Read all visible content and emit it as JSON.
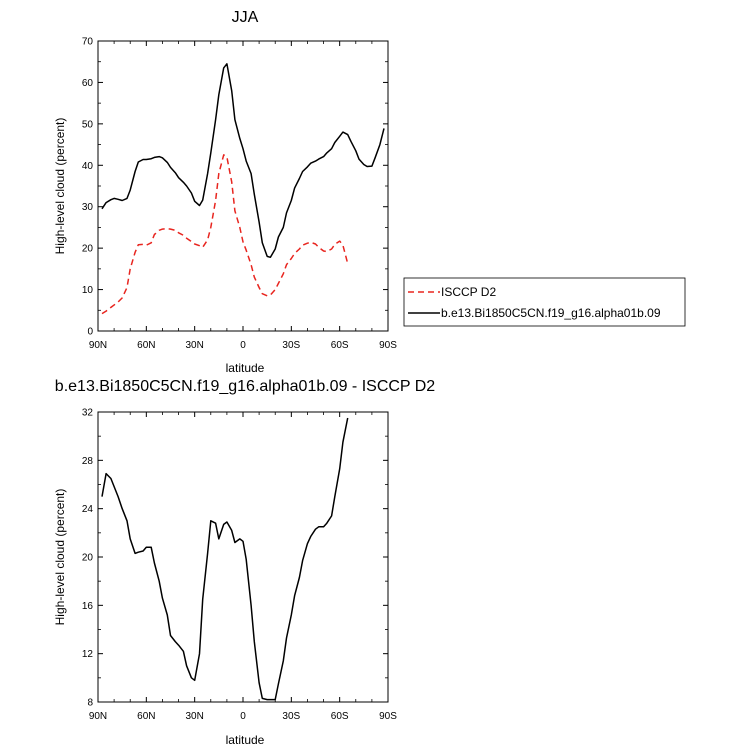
{
  "chart_data": [
    {
      "type": "line",
      "title": "JJA",
      "xlabel": "latitude",
      "ylabel": "High-level cloud (percent)",
      "xlim": [
        90,
        -90
      ],
      "ylim": [
        0,
        70
      ],
      "xticks": [
        {
          "value": 90,
          "label": "90N"
        },
        {
          "value": 60,
          "label": "60N"
        },
        {
          "value": 30,
          "label": "30N"
        },
        {
          "value": 0,
          "label": "0"
        },
        {
          "value": -30,
          "label": "30S"
        },
        {
          "value": -60,
          "label": "60S"
        },
        {
          "value": -90,
          "label": "90S"
        }
      ],
      "yticks": [
        0,
        10,
        20,
        30,
        40,
        50,
        60,
        70
      ],
      "legend": {
        "placement": "right",
        "entries": [
          "ISCCP D2",
          "b.e13.Bi1850C5CN.f19_g16.alpha01b.09"
        ]
      },
      "series": [
        {
          "name": "ISCCP D2",
          "color": "#e8251f",
          "dash": "dashed",
          "x": [
            87.5,
            85,
            82,
            77.5,
            75,
            72,
            70,
            67,
            65,
            62,
            60,
            57,
            55,
            52,
            50,
            47,
            45,
            42,
            40,
            37,
            35,
            32,
            30,
            27,
            25,
            22,
            20,
            17,
            15,
            12,
            10,
            7,
            5,
            2,
            0,
            -2,
            -5,
            -7,
            -10,
            -12,
            -15,
            -17,
            -20,
            -22,
            -25,
            -27,
            -30,
            -32,
            -35,
            -37,
            -40,
            -42,
            -45,
            -47,
            -50,
            -52,
            -55,
            -57,
            -60,
            -62,
            -65
          ],
          "y": [
            4.2,
            4.8,
            5.7,
            7,
            8,
            10.5,
            15,
            19,
            20.8,
            20.9,
            20.7,
            21.3,
            23.3,
            24.3,
            24.6,
            24.7,
            24.6,
            24.3,
            23.7,
            23.1,
            22.4,
            21.6,
            21,
            20.6,
            20.2,
            22,
            25,
            31.5,
            38,
            42.5,
            42,
            36,
            29,
            25,
            21.5,
            19.5,
            16,
            13,
            10.5,
            9,
            8.5,
            8.7,
            10,
            11.5,
            13.8,
            16,
            17.5,
            18.7,
            19.8,
            20.7,
            21.2,
            21.4,
            21,
            20.2,
            19.3,
            19.2,
            19.8,
            20.9,
            21.7,
            20.7,
            16.3
          ]
        },
        {
          "name": "b.e13.Bi1850C5CN.f19_g16.alpha01b.09",
          "color": "#000000",
          "dash": "solid",
          "x": [
            87.5,
            85,
            82,
            80,
            77.5,
            75,
            72,
            70,
            67,
            65,
            62,
            60,
            57,
            55,
            52,
            50,
            47,
            45,
            42,
            40,
            37,
            35,
            32,
            30,
            27,
            25,
            22,
            20,
            17,
            15,
            12,
            10,
            7,
            5,
            2,
            0,
            -2,
            -5,
            -7,
            -10,
            -12,
            -15,
            -17,
            -20,
            -22,
            -25,
            -27,
            -30,
            -32,
            -35,
            -37,
            -40,
            -42,
            -45,
            -47,
            -50,
            -52,
            -55,
            -57,
            -60,
            -62,
            -65,
            -67,
            -70,
            -72,
            -75,
            -77,
            -80,
            -82,
            -85,
            -87.5
          ],
          "y": [
            29.5,
            31,
            31.7,
            32,
            31.8,
            31.5,
            32,
            34,
            38.5,
            40.8,
            41.4,
            41.4,
            41.6,
            41.9,
            42.1,
            41.8,
            40.7,
            39.5,
            38.2,
            37,
            35.9,
            35,
            33.3,
            31.3,
            30.3,
            31.6,
            38,
            43,
            51,
            57,
            63.5,
            64.5,
            58,
            51,
            46.5,
            44,
            41,
            38,
            33,
            26.3,
            21.3,
            18,
            17.8,
            19.8,
            22.7,
            25,
            28.5,
            31.5,
            34.5,
            36.8,
            38.5,
            39.6,
            40.5,
            41,
            41.5,
            42.1,
            43,
            44,
            45.5,
            47,
            48,
            47.4,
            45.8,
            43.5,
            41.5,
            40.2,
            39.7,
            39.8,
            41.8,
            45,
            48.9
          ]
        }
      ]
    },
    {
      "type": "line",
      "title": "b.e13.Bi1850C5CN.f19_g16.alpha01b.09 - ISCCP D2",
      "xlabel": "latitude",
      "ylabel": "High-level cloud (percent)",
      "xlim": [
        90,
        -90
      ],
      "ylim": [
        8,
        32
      ],
      "xticks": [
        {
          "value": 90,
          "label": "90N"
        },
        {
          "value": 60,
          "label": "60N"
        },
        {
          "value": 30,
          "label": "30N"
        },
        {
          "value": 0,
          "label": "0"
        },
        {
          "value": -30,
          "label": "30S"
        },
        {
          "value": -60,
          "label": "60S"
        },
        {
          "value": -90,
          "label": "90S"
        }
      ],
      "yticks": [
        8,
        12,
        16,
        20,
        24,
        28,
        32
      ],
      "series": [
        {
          "color": "#000000",
          "dash": "solid",
          "x": [
            87.5,
            85,
            82,
            77.5,
            75,
            72,
            70,
            67,
            65,
            62,
            60,
            57,
            55,
            52,
            50,
            47,
            45,
            42,
            40,
            37,
            35,
            32,
            30,
            27,
            25,
            22,
            20,
            17,
            15,
            12,
            10,
            7,
            5,
            2,
            0,
            -2,
            -5,
            -7,
            -10,
            -12,
            -15,
            -17,
            -20,
            -22,
            -25,
            -27,
            -30,
            -32,
            -35,
            -37,
            -40,
            -42,
            -45,
            -47,
            -50,
            -52,
            -55,
            -57,
            -60,
            -62,
            -65
          ],
          "y": [
            25,
            26.9,
            26.5,
            25,
            24,
            23,
            21.5,
            20.3,
            20.4,
            20.5,
            20.8,
            20.8,
            19.5,
            18,
            16.6,
            15.2,
            13.5,
            13,
            12.7,
            12.2,
            11,
            10,
            9.8,
            12,
            16.5,
            20.3,
            23,
            22.8,
            21.5,
            22.7,
            22.9,
            22.2,
            21.2,
            21.5,
            21.3,
            19.8,
            16,
            13,
            9.6,
            8.3,
            8.2,
            8.2,
            8.2,
            9.5,
            11.4,
            13.3,
            15.2,
            16.8,
            18.3,
            19.7,
            21.1,
            21.7,
            22.3,
            22.5,
            22.5,
            22.8,
            23.4,
            25,
            27.3,
            29.5,
            31.5
          ]
        }
      ]
    }
  ]
}
